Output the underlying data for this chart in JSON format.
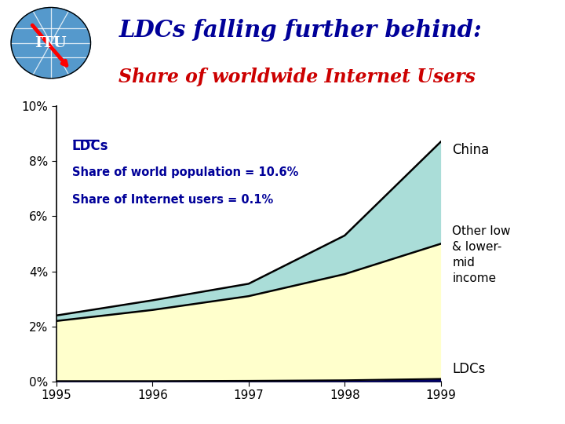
{
  "years": [
    1995,
    1996,
    1997,
    1998,
    1999
  ],
  "ldcs": [
    0.02,
    0.02,
    0.03,
    0.05,
    0.1
  ],
  "other_low": [
    2.2,
    2.6,
    3.1,
    3.9,
    5.0
  ],
  "china_top": [
    2.4,
    2.95,
    3.55,
    5.3,
    8.7
  ],
  "colors": {
    "ldcs": "#000066",
    "other_low": "#ffffcc",
    "china": "#aaddd8",
    "background": "#ffffff"
  },
  "title_line1": "LDCs falling further behind:",
  "title_line2": "Share of worldwide Internet Users",
  "annotation_ldcs_title": "LDCs",
  "annotation_line2": "Share of world population = 10.6%",
  "annotation_line3": "Share of Internet users = 0.1%",
  "label_china": "China",
  "label_other": "Other low\n& lower-\nmid\nincome",
  "label_ldcs": "LDCs",
  "yticks": [
    0,
    2,
    4,
    6,
    8,
    10
  ],
  "ytick_labels": [
    "0%",
    "2%",
    "4%",
    "6%",
    "8%",
    "10%"
  ],
  "ylim": [
    0,
    10
  ]
}
